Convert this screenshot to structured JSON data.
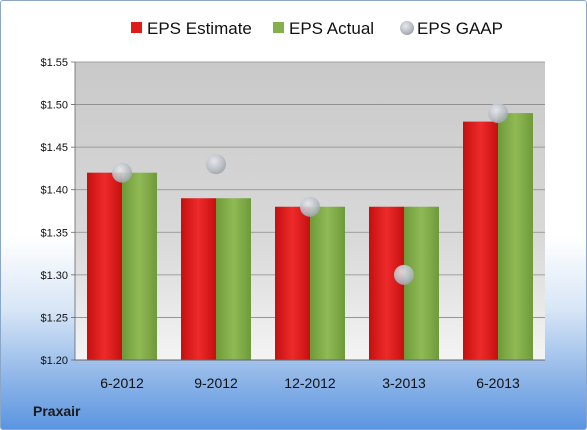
{
  "chart_data": {
    "type": "bar",
    "categories": [
      "6-2012",
      "9-2012",
      "12-2012",
      "3-2013",
      "6-2013"
    ],
    "series": [
      {
        "name": "EPS Estimate",
        "kind": "bar",
        "color": "#e01b1b",
        "values": [
          1.42,
          1.39,
          1.38,
          1.38,
          1.48
        ]
      },
      {
        "name": "EPS Actual",
        "kind": "bar",
        "color": "#82b04a",
        "values": [
          1.42,
          1.39,
          1.38,
          1.38,
          1.49
        ]
      },
      {
        "name": "EPS GAAP",
        "kind": "scatter",
        "color": "#b8bec6",
        "values": [
          1.42,
          1.43,
          1.38,
          1.3,
          1.49
        ]
      }
    ],
    "yticks": [
      "$1.20",
      "$1.25",
      "$1.30",
      "$1.35",
      "$1.40",
      "$1.45",
      "$1.50",
      "$1.55"
    ],
    "ylim": [
      1.2,
      1.55
    ],
    "grid": true,
    "legend_position": "top"
  },
  "company": "Praxair"
}
